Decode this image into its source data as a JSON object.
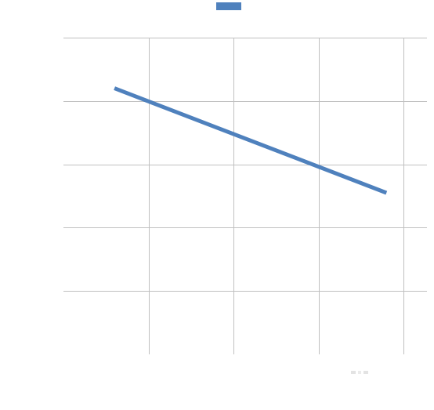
{
  "chart_data": {
    "type": "line",
    "title": "",
    "xlabel": "",
    "ylabel": "",
    "x": [
      0.6,
      3.8
    ],
    "xlim": [
      0,
      4.3
    ],
    "ylim": [
      0,
      5
    ],
    "grid": true,
    "legend": "top-center",
    "series": [
      {
        "values": [
          4.2,
          2.55
        ],
        "color": "#4F81BD"
      }
    ]
  }
}
